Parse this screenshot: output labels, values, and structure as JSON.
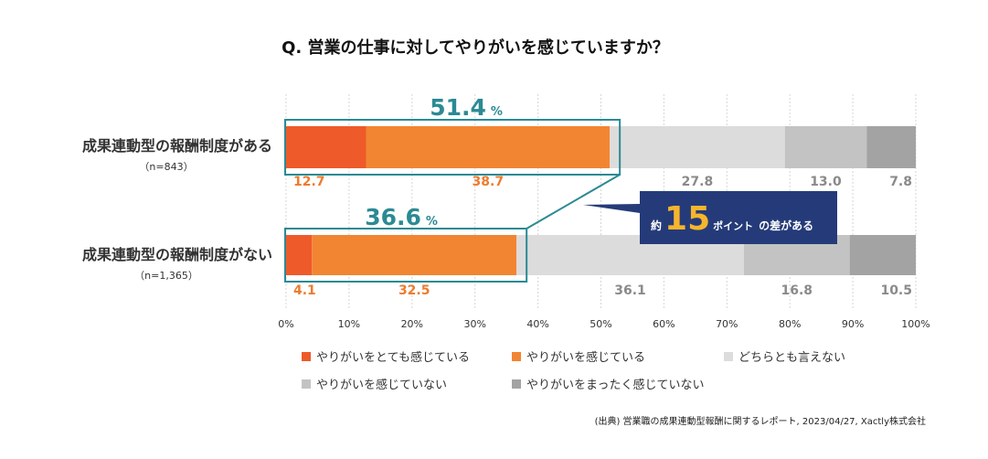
{
  "chart_data": {
    "type": "bar",
    "orientation": "horizontal",
    "stacked": true,
    "title": "Q. 営業の仕事に対してやりがいを感じていますか？",
    "categories": [
      {
        "label": "成果連動型の報酬制度がある",
        "sublabel": "（n=843）"
      },
      {
        "label": "成果連動型の報酬制度がない",
        "sublabel": "（n=1,365）"
      }
    ],
    "series": [
      {
        "name": "やりがいをとても感じている",
        "color": "#ee5a2a",
        "label_color": "#ee7b2e",
        "values": [
          12.7,
          4.1
        ]
      },
      {
        "name": "やりがいを感じている",
        "color": "#f28532",
        "label_color": "#ee7b2e",
        "values": [
          38.7,
          32.5
        ]
      },
      {
        "name": "どちらとも言えない",
        "color": "#dcdcdc",
        "label_color": "#8a8a8a",
        "values": [
          27.8,
          36.1
        ]
      },
      {
        "name": "やりがいを感じていない",
        "color": "#c3c3c3",
        "label_color": "#8a8a8a",
        "values": [
          13.0,
          16.8
        ]
      },
      {
        "name": "やりがいをまったく感じていない",
        "color": "#a3a3a3",
        "label_color": "#8a8a8a",
        "values": [
          7.8,
          10.5
        ]
      }
    ],
    "totals": [
      {
        "value": "51.4",
        "unit": "%"
      },
      {
        "value": "36.6",
        "unit": "%"
      }
    ],
    "callout": {
      "prefix": "約",
      "number": "15",
      "suffix1": "ポイント",
      "suffix2": "の差がある"
    },
    "xlim": [
      0,
      100
    ],
    "xticks": [
      "0%",
      "10%",
      "20%",
      "30%",
      "40%",
      "50%",
      "60%",
      "70%",
      "80%",
      "90%",
      "100%"
    ],
    "grid": true
  },
  "source": "(出典) 営業職の成果連動型報酬に関するレポート, 2023/04/27, Xactly株式会社",
  "colors": {
    "accent_teal": "#2b8a94",
    "callout_bg": "#253b79",
    "callout_number": "#f7b52c"
  }
}
